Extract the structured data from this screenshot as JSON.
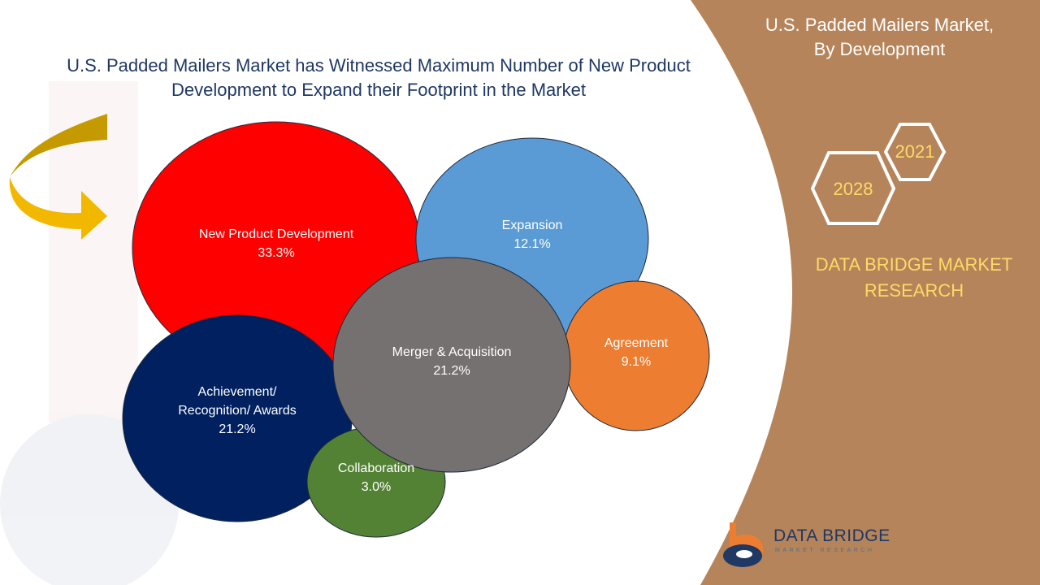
{
  "title": "U.S. Padded Mailers Market has Witnessed Maximum Number of New Product Development to Expand their Footprint in the Market",
  "side_panel": {
    "title_line1": "U.S. Padded Mailers Market,",
    "title_line2": "By Development",
    "year_start": "2021",
    "year_end": "2028",
    "brand_line1": "DATA BRIDGE MARKET",
    "brand_line2": "RESEARCH"
  },
  "logo": {
    "name": "DATA BRIDGE",
    "subtitle": "MARKET RESEARCH"
  },
  "colors": {
    "panel": "#b5845a",
    "title": "#1f3864",
    "brand_gold": "#ffd966",
    "arrow": "#f2b800"
  },
  "chart_data": {
    "type": "bubble",
    "items": [
      {
        "label": "New Product Development",
        "value": 33.3,
        "display": "33.3%",
        "color": "#ff0000"
      },
      {
        "label": "Expansion",
        "value": 12.1,
        "display": "12.1%",
        "color": "#5b9bd5"
      },
      {
        "label": "Agreement",
        "value": 9.1,
        "display": "9.1%",
        "color": "#ed7d31"
      },
      {
        "label": "Achievement/ Recognition/ Awards",
        "value": 21.2,
        "display": "21.2%",
        "color": "#002060"
      },
      {
        "label": "Collaboration",
        "value": 3.0,
        "display": "3.0%",
        "color": "#548235"
      },
      {
        "label": "Merger & Acquisition",
        "value": 21.2,
        "display": "21.2%",
        "color": "#767171"
      }
    ]
  }
}
